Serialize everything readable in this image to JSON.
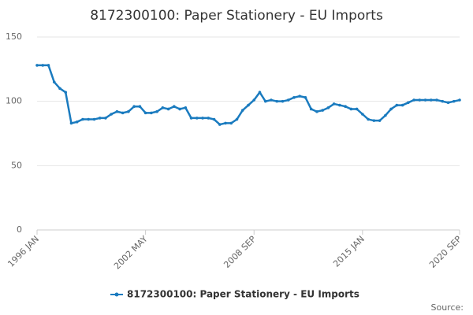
{
  "chart_data": {
    "type": "line",
    "title": "8172300100: Paper Stationery - EU Imports",
    "categories": [
      "1996 JAN",
      null,
      null,
      null,
      null,
      null,
      null,
      null,
      null,
      null,
      null,
      null,
      null,
      null,
      null,
      null,
      null,
      null,
      null,
      "2002 MAY",
      null,
      null,
      null,
      null,
      null,
      null,
      null,
      null,
      null,
      null,
      null,
      null,
      null,
      null,
      null,
      null,
      null,
      null,
      "2008 SEP",
      null,
      null,
      null,
      null,
      null,
      null,
      null,
      null,
      null,
      null,
      null,
      null,
      null,
      null,
      null,
      null,
      null,
      null,
      "2015 JAN",
      null,
      null,
      null,
      null,
      null,
      null,
      null,
      null,
      null,
      null,
      null,
      null,
      null,
      null,
      null,
      null,
      "2020 SEP"
    ],
    "series": [
      {
        "name": "8172300100: Paper Stationery - EU Imports",
        "color": "#1a7bbf",
        "values": [
          128,
          128,
          128,
          115,
          110,
          107,
          83,
          84,
          86,
          86,
          86,
          87,
          87,
          90,
          92,
          91,
          92,
          96,
          96,
          91,
          91,
          92,
          95,
          94,
          96,
          94,
          95,
          87,
          87,
          87,
          87,
          86,
          82,
          83,
          83,
          86,
          93,
          97,
          101,
          107,
          100,
          101,
          100,
          100,
          101,
          103,
          104,
          103,
          94,
          92,
          93,
          95,
          98,
          97,
          96,
          94,
          94,
          90,
          86,
          85,
          85,
          89,
          94,
          97,
          97,
          99,
          101,
          101,
          101,
          101,
          101,
          100,
          99,
          100,
          101
        ]
      }
    ],
    "ylim": [
      0,
      150
    ],
    "yticks": [
      0,
      50,
      100,
      150
    ],
    "grid": true,
    "legend": "bottom",
    "source": "Source:"
  }
}
